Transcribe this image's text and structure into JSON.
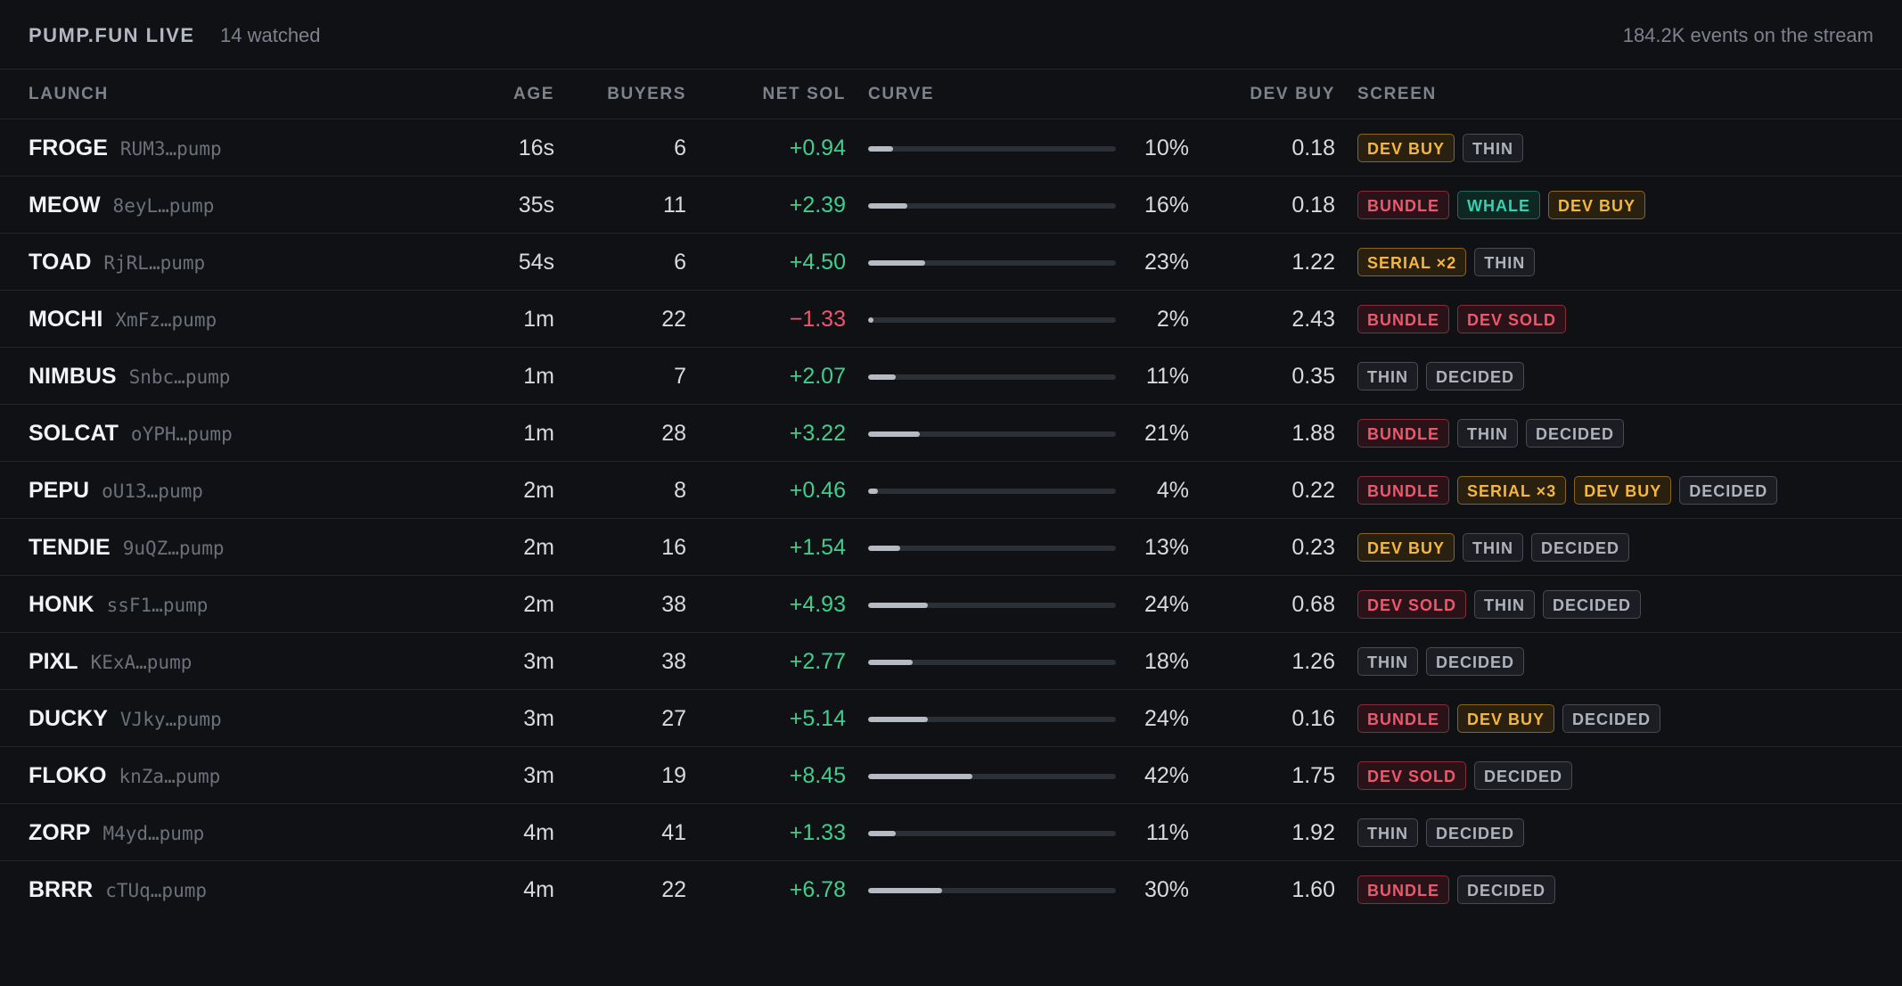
{
  "header": {
    "title": "PUMP.FUN LIVE",
    "watched": "14 watched",
    "events": "184.2K events on the stream"
  },
  "columns": {
    "launch": "LAUNCH",
    "age": "AGE",
    "buyers": "BUYERS",
    "net_sol": "NET SOL",
    "curve": "CURVE",
    "dev_buy": "DEV BUY",
    "screen": "SCREEN"
  },
  "colors": {
    "positive": "#3ecf8e",
    "negative": "#f0566b",
    "bundle": "#f0566b",
    "dev_buy": "#f5b73b",
    "whale": "#35d0b0",
    "serial": "#f5b73b",
    "dev_sold": "#f0566b",
    "thin": "#aeb2ba",
    "decided": "#aeb2ba"
  },
  "rows": [
    {
      "ticker": "FROGE",
      "address": "RUM3…pump",
      "age": "16s",
      "buyers": "6",
      "net_sol": "+0.94",
      "sign": "pos",
      "curve": 0.1,
      "curve_pct": "10%",
      "dev_buy": "0.18",
      "tags": [
        {
          "kind": "devbuy",
          "label": "DEV BUY"
        },
        {
          "kind": "thin",
          "label": "THIN"
        }
      ]
    },
    {
      "ticker": "MEOW",
      "address": "8eyL…pump",
      "age": "35s",
      "buyers": "11",
      "net_sol": "+2.39",
      "sign": "pos",
      "curve": 0.16,
      "curve_pct": "16%",
      "dev_buy": "0.18",
      "tags": [
        {
          "kind": "bundle",
          "label": "BUNDLE"
        },
        {
          "kind": "whale",
          "label": "WHALE"
        },
        {
          "kind": "devbuy",
          "label": "DEV BUY"
        }
      ]
    },
    {
      "ticker": "TOAD",
      "address": "RjRL…pump",
      "age": "54s",
      "buyers": "6",
      "net_sol": "+4.50",
      "sign": "pos",
      "curve": 0.23,
      "curve_pct": "23%",
      "dev_buy": "1.22",
      "tags": [
        {
          "kind": "serial",
          "label": "SERIAL ×2"
        },
        {
          "kind": "thin",
          "label": "THIN"
        }
      ]
    },
    {
      "ticker": "MOCHI",
      "address": "XmFz…pump",
      "age": "1m",
      "buyers": "22",
      "net_sol": "−1.33",
      "sign": "neg",
      "curve": 0.02,
      "curve_pct": "2%",
      "dev_buy": "2.43",
      "tags": [
        {
          "kind": "bundle",
          "label": "BUNDLE"
        },
        {
          "kind": "devsold",
          "label": "DEV SOLD"
        }
      ]
    },
    {
      "ticker": "NIMBUS",
      "address": "Snbc…pump",
      "age": "1m",
      "buyers": "7",
      "net_sol": "+2.07",
      "sign": "pos",
      "curve": 0.11,
      "curve_pct": "11%",
      "dev_buy": "0.35",
      "tags": [
        {
          "kind": "thin",
          "label": "THIN"
        },
        {
          "kind": "decided",
          "label": "DECIDED"
        }
      ]
    },
    {
      "ticker": "SOLCAT",
      "address": "oYPH…pump",
      "age": "1m",
      "buyers": "28",
      "net_sol": "+3.22",
      "sign": "pos",
      "curve": 0.21,
      "curve_pct": "21%",
      "dev_buy": "1.88",
      "tags": [
        {
          "kind": "bundle",
          "label": "BUNDLE"
        },
        {
          "kind": "thin",
          "label": "THIN"
        },
        {
          "kind": "decided",
          "label": "DECIDED"
        }
      ]
    },
    {
      "ticker": "PEPU",
      "address": "oU13…pump",
      "age": "2m",
      "buyers": "8",
      "net_sol": "+0.46",
      "sign": "pos",
      "curve": 0.04,
      "curve_pct": "4%",
      "dev_buy": "0.22",
      "tags": [
        {
          "kind": "bundle",
          "label": "BUNDLE"
        },
        {
          "kind": "serial",
          "label": "SERIAL ×3"
        },
        {
          "kind": "devbuy",
          "label": "DEV BUY"
        },
        {
          "kind": "decided",
          "label": "DECIDED"
        }
      ]
    },
    {
      "ticker": "TENDIE",
      "address": "9uQZ…pump",
      "age": "2m",
      "buyers": "16",
      "net_sol": "+1.54",
      "sign": "pos",
      "curve": 0.13,
      "curve_pct": "13%",
      "dev_buy": "0.23",
      "tags": [
        {
          "kind": "devbuy",
          "label": "DEV BUY"
        },
        {
          "kind": "thin",
          "label": "THIN"
        },
        {
          "kind": "decided",
          "label": "DECIDED"
        }
      ]
    },
    {
      "ticker": "HONK",
      "address": "ssF1…pump",
      "age": "2m",
      "buyers": "38",
      "net_sol": "+4.93",
      "sign": "pos",
      "curve": 0.24,
      "curve_pct": "24%",
      "dev_buy": "0.68",
      "tags": [
        {
          "kind": "devsold",
          "label": "DEV SOLD"
        },
        {
          "kind": "thin",
          "label": "THIN"
        },
        {
          "kind": "decided",
          "label": "DECIDED"
        }
      ]
    },
    {
      "ticker": "PIXL",
      "address": "KExA…pump",
      "age": "3m",
      "buyers": "38",
      "net_sol": "+2.77",
      "sign": "pos",
      "curve": 0.18,
      "curve_pct": "18%",
      "dev_buy": "1.26",
      "tags": [
        {
          "kind": "thin",
          "label": "THIN"
        },
        {
          "kind": "decided",
          "label": "DECIDED"
        }
      ]
    },
    {
      "ticker": "DUCKY",
      "address": "VJky…pump",
      "age": "3m",
      "buyers": "27",
      "net_sol": "+5.14",
      "sign": "pos",
      "curve": 0.24,
      "curve_pct": "24%",
      "dev_buy": "0.16",
      "tags": [
        {
          "kind": "bundle",
          "label": "BUNDLE"
        },
        {
          "kind": "devbuy",
          "label": "DEV BUY"
        },
        {
          "kind": "decided",
          "label": "DECIDED"
        }
      ]
    },
    {
      "ticker": "FLOKO",
      "address": "knZa…pump",
      "age": "3m",
      "buyers": "19",
      "net_sol": "+8.45",
      "sign": "pos",
      "curve": 0.42,
      "curve_pct": "42%",
      "dev_buy": "1.75",
      "tags": [
        {
          "kind": "devsold",
          "label": "DEV SOLD"
        },
        {
          "kind": "decided",
          "label": "DECIDED"
        }
      ]
    },
    {
      "ticker": "ZORP",
      "address": "M4yd…pump",
      "age": "4m",
      "buyers": "41",
      "net_sol": "+1.33",
      "sign": "pos",
      "curve": 0.11,
      "curve_pct": "11%",
      "dev_buy": "1.92",
      "tags": [
        {
          "kind": "thin",
          "label": "THIN"
        },
        {
          "kind": "decided",
          "label": "DECIDED"
        }
      ]
    },
    {
      "ticker": "BRRR",
      "address": "cTUq…pump",
      "age": "4m",
      "buyers": "22",
      "net_sol": "+6.78",
      "sign": "pos",
      "curve": 0.3,
      "curve_pct": "30%",
      "dev_buy": "1.60",
      "tags": [
        {
          "kind": "bundle",
          "label": "BUNDLE"
        },
        {
          "kind": "decided",
          "label": "DECIDED"
        }
      ]
    }
  ]
}
